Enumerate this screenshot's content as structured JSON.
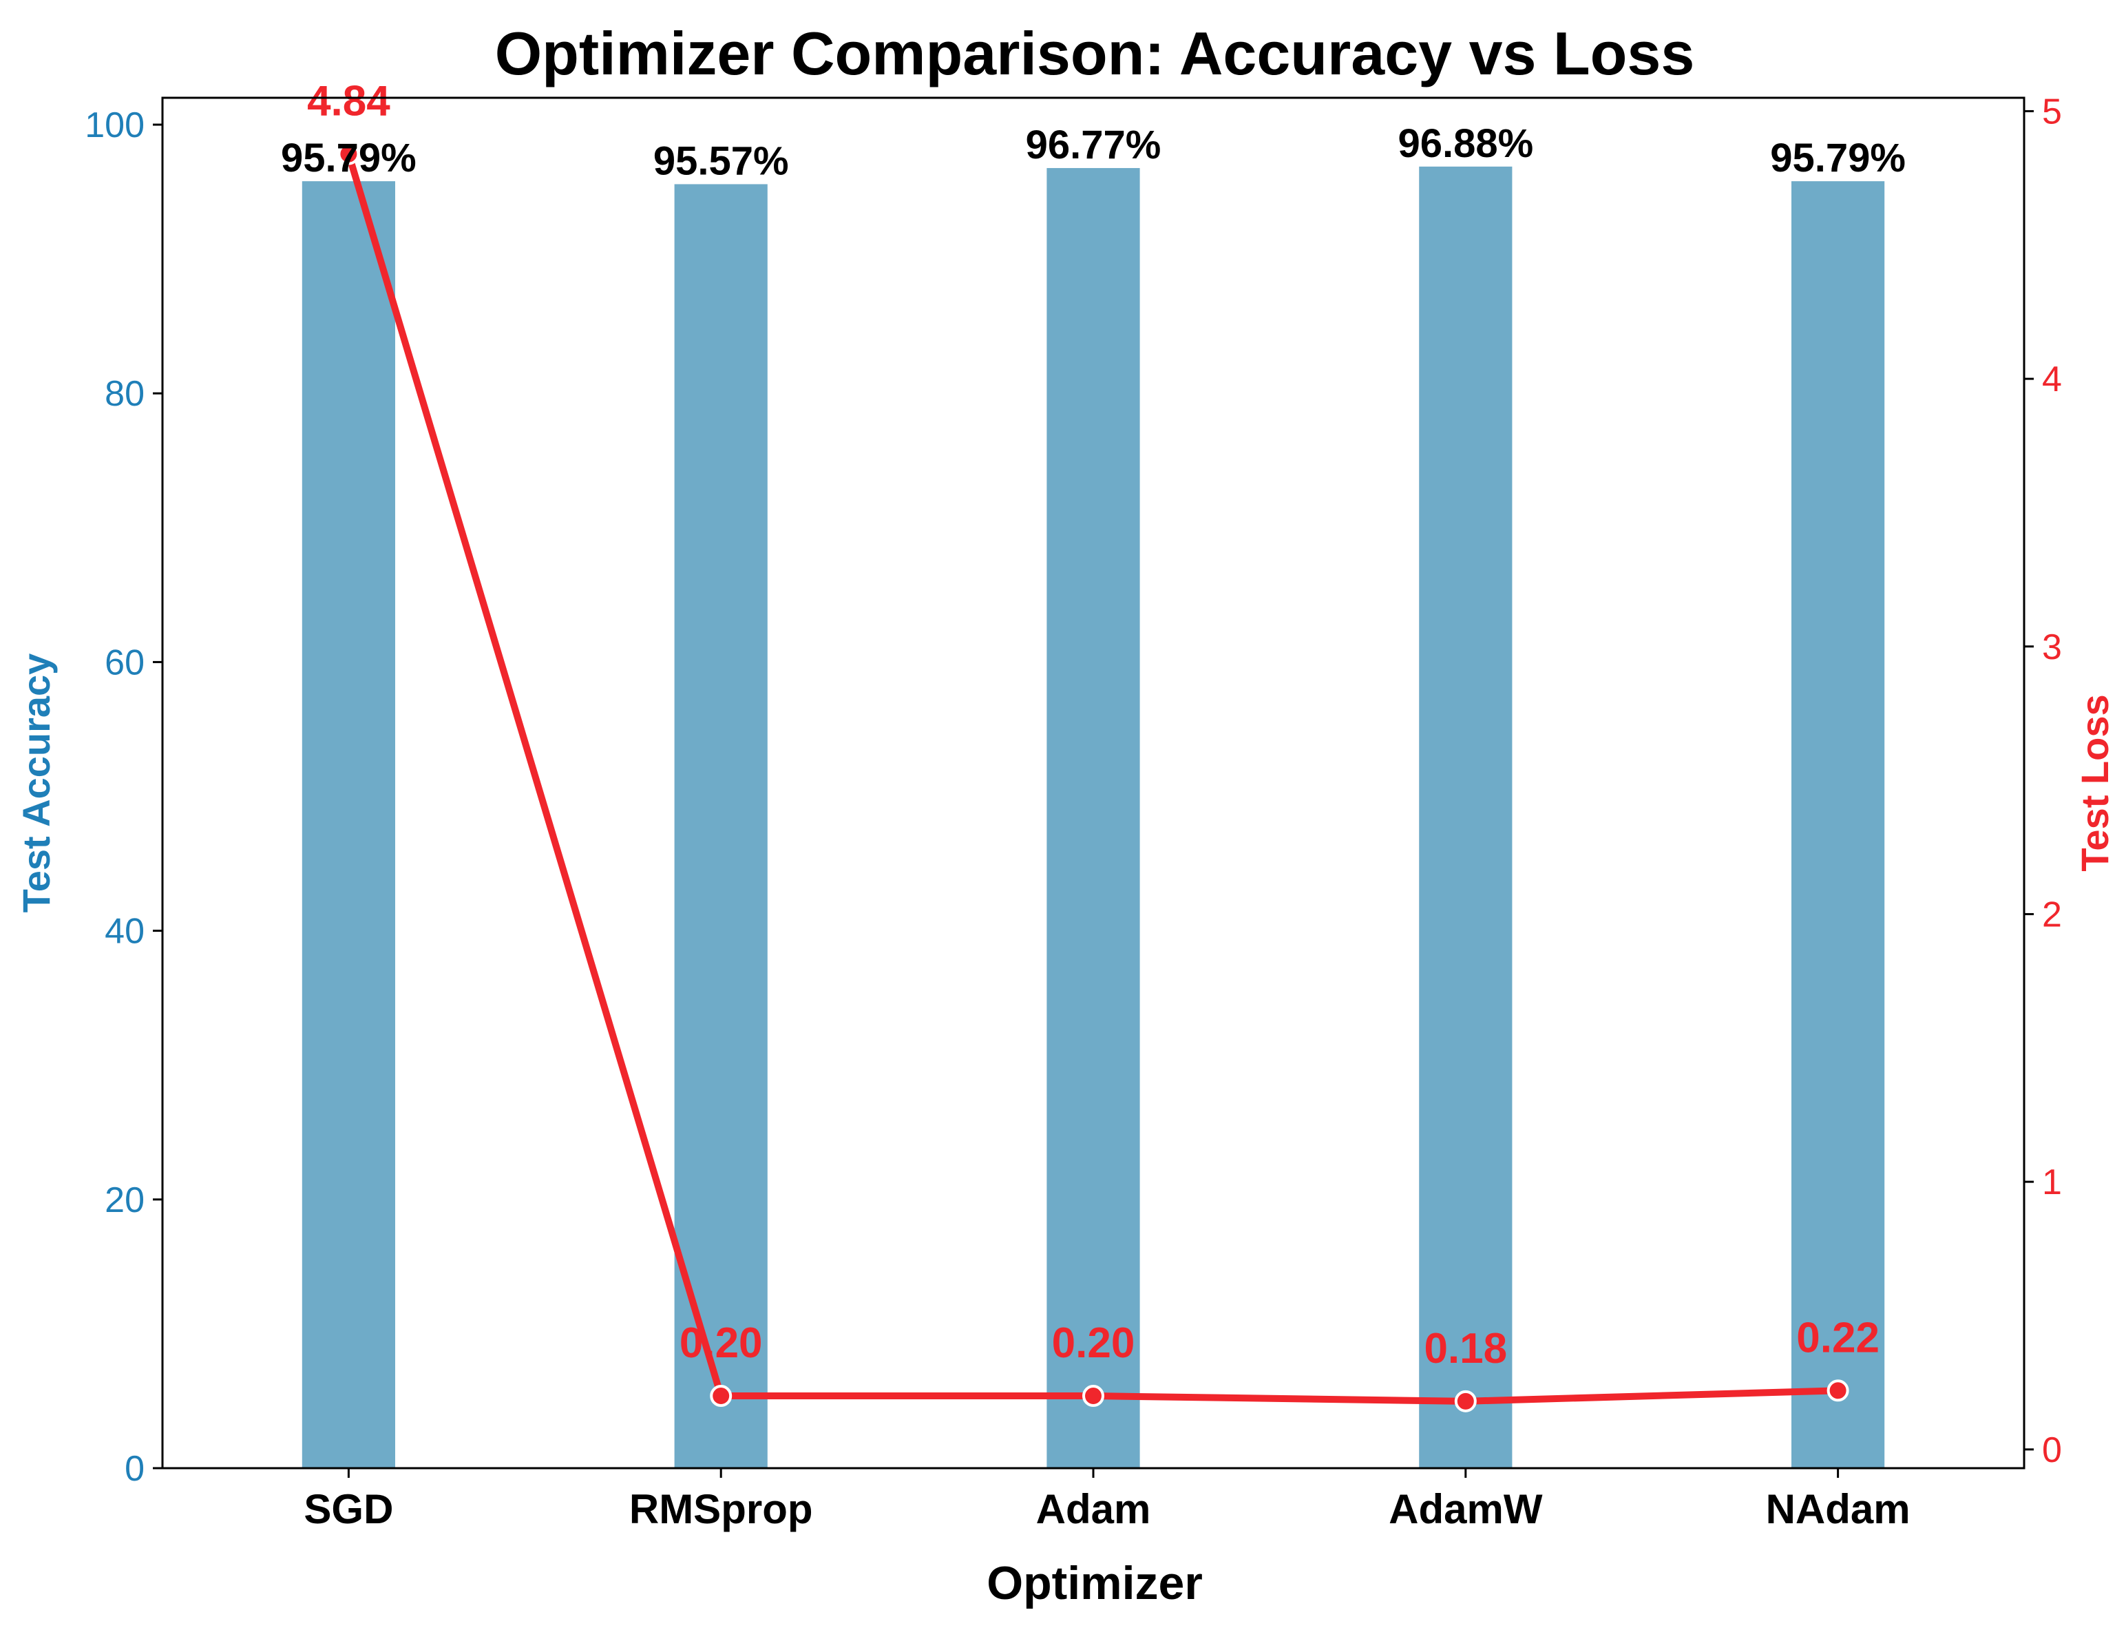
{
  "colors": {
    "bar": "#6fabc8",
    "line": "#f0262c",
    "left_axis": "#1f7fb8",
    "right_axis": "#f0262c",
    "frame": "#000000",
    "background": "#ffffff"
  },
  "chart_data": {
    "type": "bar",
    "title": "Optimizer Comparison: Accuracy vs Loss",
    "xlabel": "Optimizer",
    "ylabel": "Test Accuracy",
    "y2label": "Test Loss",
    "categories": [
      "SGD",
      "RMSprop",
      "Adam",
      "AdamW",
      "NAdam"
    ],
    "series": [
      {
        "type": "bar",
        "axis": "left",
        "values": [
          95.79,
          95.57,
          96.77,
          96.88,
          95.79
        ],
        "labels": [
          "95.79%",
          "95.57%",
          "96.77%",
          "96.88%",
          "95.79%"
        ]
      },
      {
        "type": "line",
        "axis": "right",
        "values": [
          4.84,
          0.2,
          0.2,
          0.18,
          0.22
        ],
        "labels": [
          "4.84",
          "0.20",
          "0.20",
          "0.18",
          "0.22"
        ]
      }
    ],
    "ylim": [
      0,
      102
    ],
    "y2lim": [
      -0.07,
      5.05
    ],
    "yticks": [
      0,
      20,
      40,
      60,
      80,
      100
    ],
    "y2ticks": [
      0,
      1,
      2,
      3,
      4,
      5
    ],
    "grid": false,
    "legend": "none"
  }
}
